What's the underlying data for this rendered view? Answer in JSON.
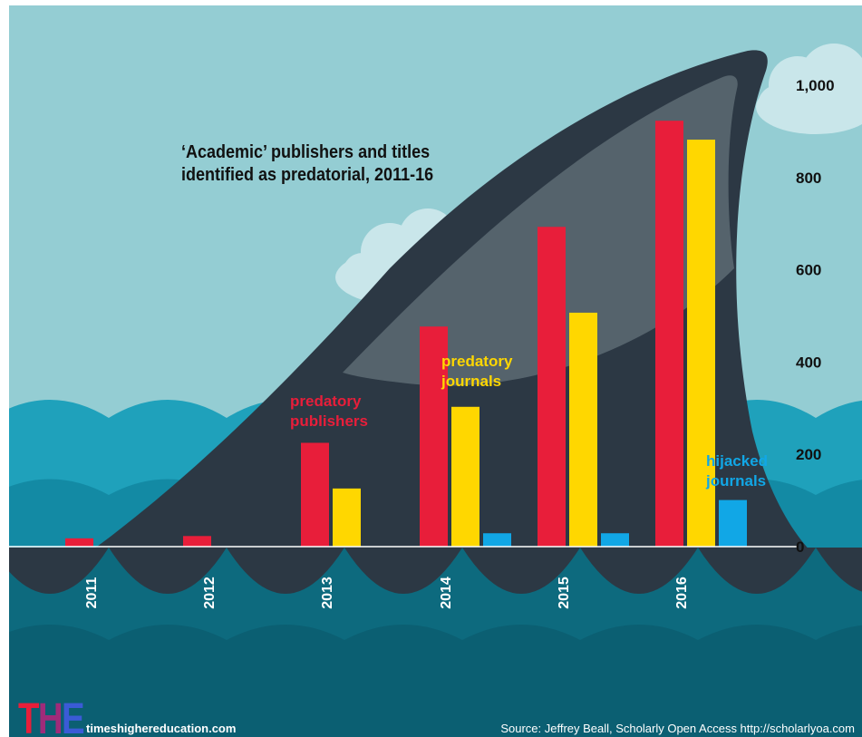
{
  "title": "'Academic' publishers and titles identified as predatorial, 2011-16",
  "title_line1": "‘Academic’ publishers and titles",
  "title_line2": "identified as predatorial, 2011-16",
  "logo": "THE",
  "website": "timeshighereducation.com",
  "source": "Source: Jeffrey Beall, Scholarly Open Access http://scholarlyoa.com",
  "colors": {
    "sky": "#94cdd3",
    "cloud": "#c9e6ea",
    "fin": "#2c3844",
    "fin_highlight": "#55636c",
    "wave_light": "#1fa1bb",
    "wave_mid": "#138aa4",
    "water_deep": "#0d6a7e",
    "publishers": "#e81e3a",
    "journals": "#ffd700",
    "hijacked": "#11a7e6",
    "text_light": "#ffffff",
    "text_dark": "#111111"
  },
  "chart_data": {
    "type": "bar",
    "title": "'Academic' publishers and titles identified as predatorial, 2011-16",
    "categories": [
      "2011",
      "2012",
      "2013",
      "2014",
      "2015",
      "2016"
    ],
    "series": [
      {
        "name": "predatory publishers",
        "label_lines": [
          "predatory",
          "publishers"
        ],
        "color": "#e81e3a",
        "values": [
          18,
          23,
          225,
          477,
          693,
          923
        ]
      },
      {
        "name": "predatory journals",
        "label_lines": [
          "predatory",
          "journals"
        ],
        "color": "#ffd700",
        "values": [
          null,
          null,
          126,
          303,
          507,
          882
        ]
      },
      {
        "name": "hijacked journals",
        "label_lines": [
          "hijacked",
          "journals"
        ],
        "color": "#11a7e6",
        "values": [
          null,
          null,
          null,
          29,
          29,
          101
        ]
      }
    ],
    "yticks": [
      "0",
      "200",
      "400",
      "600",
      "800",
      "1,000"
    ],
    "ylim": [
      0,
      1000
    ],
    "xlabel": "",
    "ylabel": "",
    "grid": false,
    "legend": "labels next to bars"
  }
}
